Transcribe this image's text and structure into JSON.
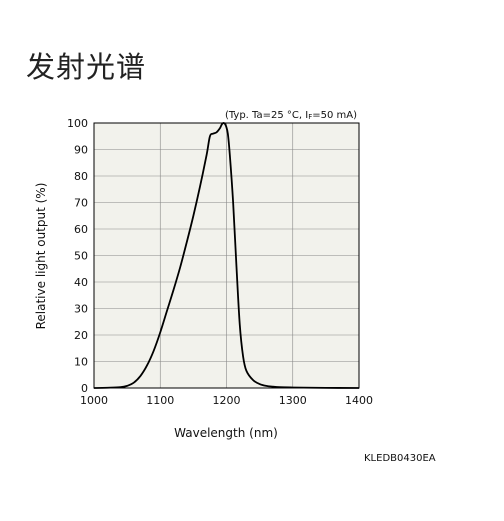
{
  "page": {
    "title": "发射光谱"
  },
  "figure_code": "KLEDB0430EA",
  "chart_data": {
    "type": "line",
    "title": "",
    "conditions": "(Typ. Ta=25 °C, I",
    "conditions_sub": "F",
    "conditions_tail": "=50 mA)",
    "xlabel": "Wavelength (nm)",
    "ylabel": "Relative light output (%)",
    "xlim": [
      1000,
      1400
    ],
    "ylim": [
      0,
      100
    ],
    "xticks": [
      1000,
      1100,
      1200,
      1300,
      1400
    ],
    "yticks": [
      0,
      10,
      20,
      30,
      40,
      50,
      60,
      70,
      80,
      90,
      100
    ],
    "grid": true,
    "plot_background": "#f2f2ec",
    "line_color": "#000000",
    "series": [
      {
        "x": [
          1000,
          1020,
          1040,
          1050,
          1060,
          1070,
          1080,
          1090,
          1100,
          1110,
          1120,
          1130,
          1140,
          1150,
          1160,
          1170,
          1175,
          1180,
          1185,
          1190,
          1193,
          1196,
          1199,
          1202,
          1205,
          1210,
          1215,
          1220,
          1225,
          1230,
          1240,
          1250,
          1260,
          1270,
          1280,
          1300,
          1350,
          1400
        ],
        "y": [
          0,
          0.1,
          0.3,
          0.8,
          2,
          4.5,
          8.5,
          14,
          21,
          29,
          37,
          45.5,
          55,
          65,
          76,
          88,
          95,
          96,
          96.5,
          98,
          99.5,
          100,
          99,
          96,
          88,
          70,
          46,
          24,
          12,
          6.5,
          3,
          1.5,
          0.8,
          0.5,
          0.3,
          0.2,
          0.05,
          0
        ]
      }
    ]
  }
}
